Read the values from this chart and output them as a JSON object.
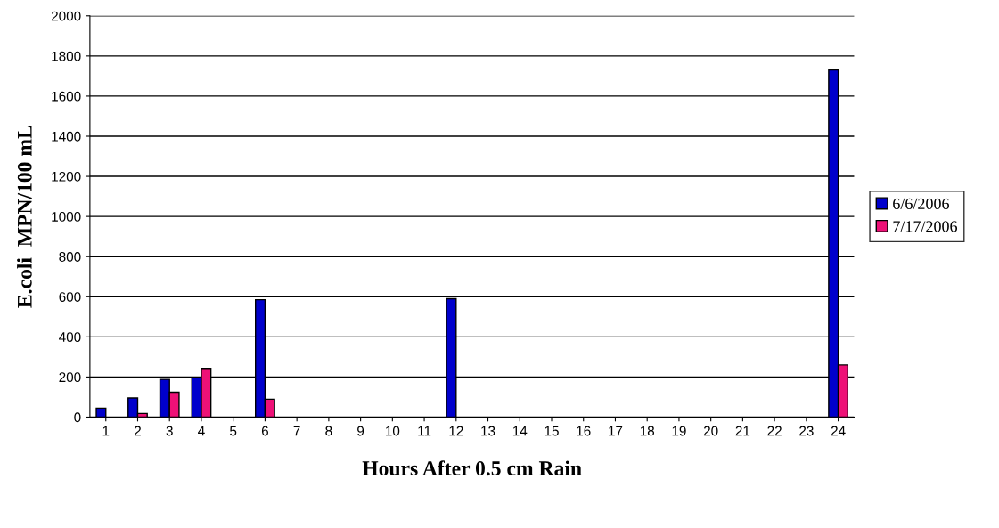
{
  "chart_data": {
    "type": "bar",
    "xlabel": "Hours After 0.5 cm Rain",
    "ylabel": "E.coli  MPN/100 mL",
    "categories": [
      "1",
      "2",
      "3",
      "4",
      "5",
      "6",
      "7",
      "8",
      "9",
      "10",
      "11",
      "12",
      "13",
      "14",
      "15",
      "16",
      "17",
      "18",
      "19",
      "20",
      "21",
      "22",
      "23",
      "24"
    ],
    "series": [
      {
        "name": "6/6/2006",
        "color": "#0000cc",
        "values": [
          45,
          95,
          188,
          196,
          null,
          585,
          null,
          null,
          null,
          null,
          null,
          590,
          null,
          null,
          null,
          null,
          null,
          null,
          null,
          null,
          null,
          null,
          null,
          1730
        ]
      },
      {
        "name": "7/17/2006",
        "color": "#ee1177",
        "values": [
          null,
          18,
          124,
          243,
          null,
          89,
          null,
          null,
          null,
          null,
          null,
          null,
          null,
          null,
          null,
          null,
          null,
          null,
          null,
          null,
          null,
          null,
          null,
          260
        ]
      }
    ],
    "ylim": [
      0,
      2000
    ],
    "yticks": [
      0,
      200,
      400,
      600,
      800,
      1000,
      1200,
      1400,
      1600,
      1800,
      2000
    ],
    "grid": "y",
    "legend": "right"
  }
}
